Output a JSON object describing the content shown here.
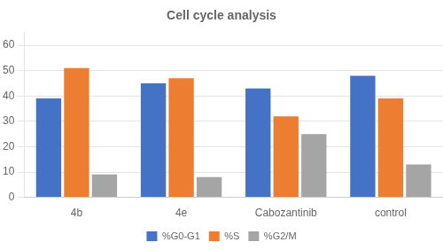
{
  "chart_data": {
    "type": "bar",
    "title": "Cell cycle analysis",
    "categories": [
      "4b",
      "4e",
      "Cabozantinib",
      "control"
    ],
    "series": [
      {
        "name": "%G0-G1",
        "color": "#4472C4",
        "values": [
          39,
          45,
          43,
          48
        ]
      },
      {
        "name": "%S",
        "color": "#ED7D31",
        "values": [
          51,
          47,
          32,
          39
        ]
      },
      {
        "name": "%G2/M",
        "color": "#A5A5A5",
        "values": [
          9,
          8,
          25,
          13
        ]
      }
    ],
    "ylim": [
      0,
      65
    ],
    "yticks": [
      0,
      10,
      20,
      30,
      40,
      50,
      60
    ],
    "grid": true,
    "legend": "bottom"
  }
}
